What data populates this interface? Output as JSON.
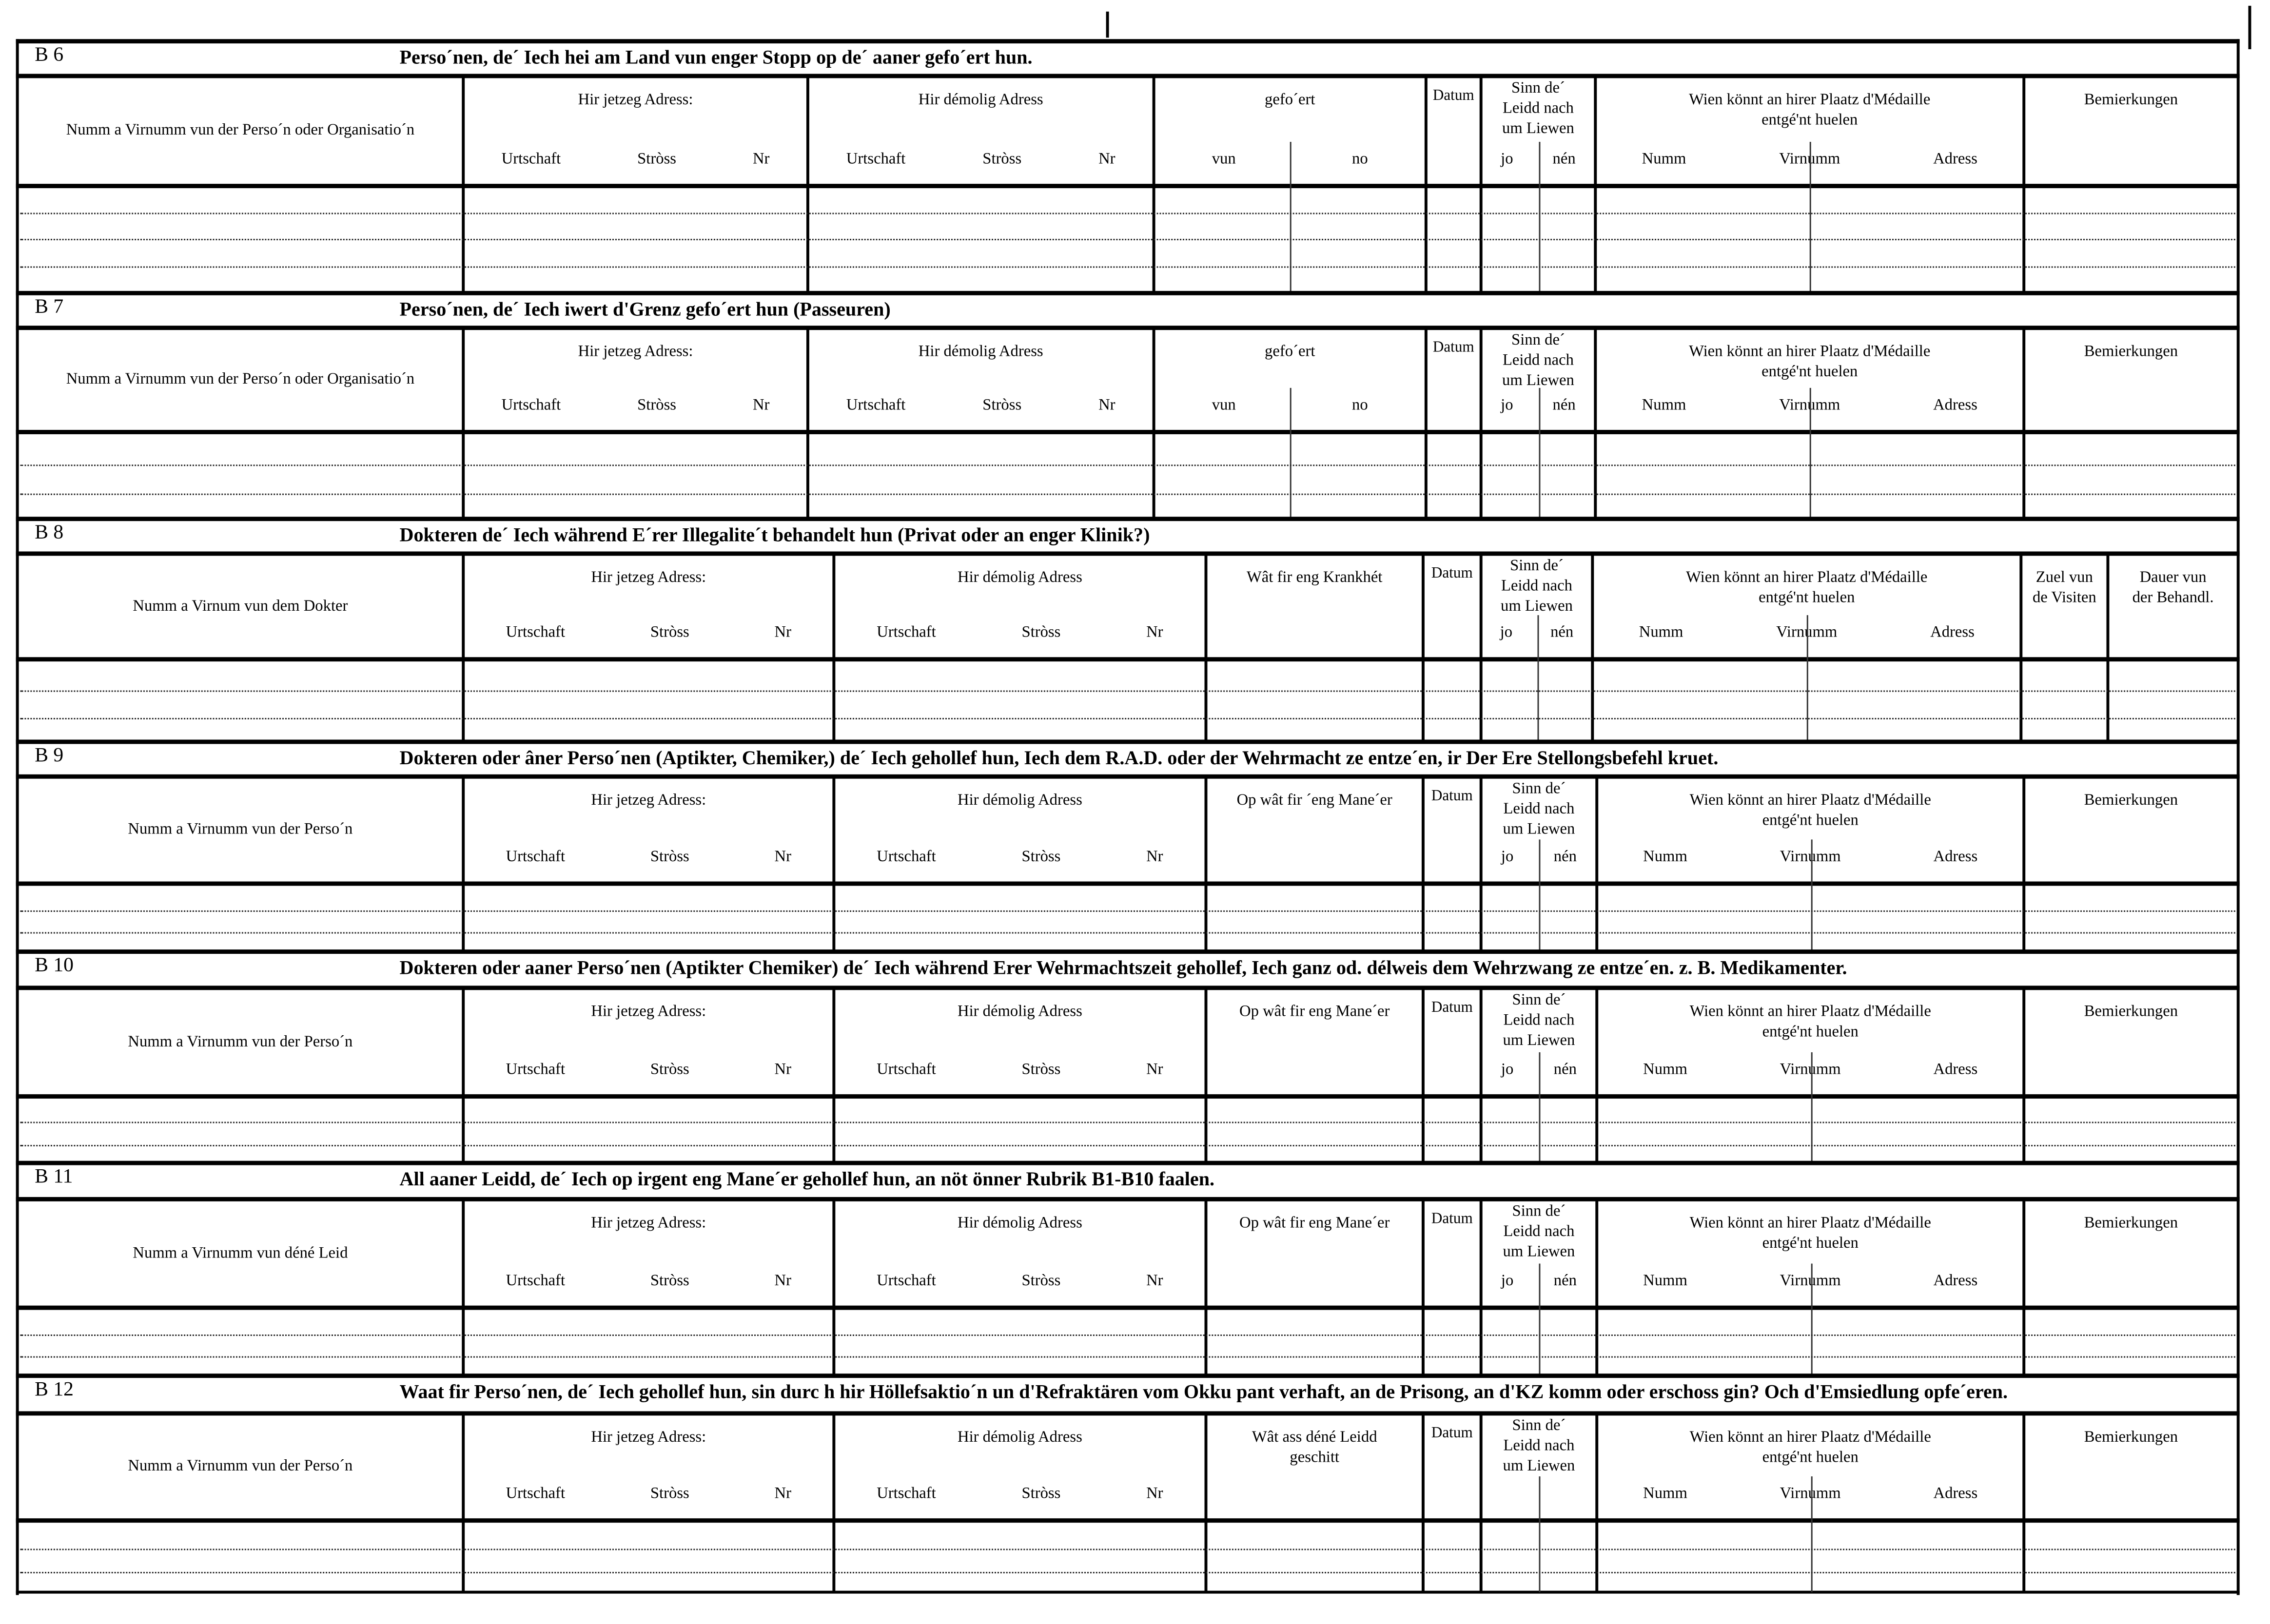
{
  "sections": [
    {
      "code": "B 6",
      "title": "Perso´nen, de´ Iech hei am Land vun enger Stopp  op de´ aaner gefo´ert hun.",
      "columns": [
        {
          "label": "Numm a Virnumm vun der Perso´n oder Organisatio´n"
        },
        {
          "label": "Hir jetzeg Adress:",
          "sub": [
            "Urtschaft",
            "Stròss",
            "Nr"
          ]
        },
        {
          "label": "Hir démolig Adress",
          "sub": [
            "Urtschaft",
            "Stròss",
            "Nr"
          ]
        },
        {
          "label": "gefo´ert",
          "sub": [
            "vun",
            "no"
          ]
        },
        {
          "label": "Datum"
        },
        {
          "label": "Sinn  de´\nLeidd  nach\num Liewen",
          "sub": [
            "jo",
            "nén"
          ]
        },
        {
          "label": "Wien  könnt  an  hirer  Plaatz  d'Médaille\nentgé'nt huelen",
          "sub": [
            "Numm",
            "Virnumm",
            "Adress"
          ]
        },
        {
          "label": "Bemierkungen"
        }
      ]
    },
    {
      "code": "B 7",
      "title": "Perso´nen, de´ Iech iwert d'Grenz gefo´ert hun (Passeuren)",
      "columns": [
        {
          "label": "Numm a Virnumm vun der Perso´n oder Organisatio´n"
        },
        {
          "label": "Hir jetzeg Adress:",
          "sub": [
            "Urtschaft",
            "Stròss",
            "Nr"
          ]
        },
        {
          "label": "Hir démolig Adress",
          "sub": [
            "Urtschaft",
            "Stròss",
            "Nr"
          ]
        },
        {
          "label": "gefo´ert",
          "sub": [
            "vun",
            "no"
          ]
        },
        {
          "label": "Datum"
        },
        {
          "label": "Sinn  de´\nLeidd  nach\num Liewen",
          "sub": [
            "jo",
            "nén"
          ]
        },
        {
          "label": "Wien  könnt  an  hirer  Plaatz  d'Médaille\nentgé'nt huelen",
          "sub": [
            "Numm",
            "Virnumm",
            "Adress"
          ]
        },
        {
          "label": "Bemierkungen"
        }
      ]
    },
    {
      "code": "B 8",
      "title": "Dokteren de´ Iech während E´rer Illegalite´t behandelt hun (Privat  oder an enger Klinik?)",
      "columns": [
        {
          "label": "Numm a Virnum vun dem Dokter"
        },
        {
          "label": "Hir jetzeg Adress:",
          "sub": [
            "Urtschaft",
            "Stròss",
            "Nr"
          ]
        },
        {
          "label": "Hir démolig Adress",
          "sub": [
            "Urtschaft",
            "Stròss",
            "Nr"
          ]
        },
        {
          "label": "Wât fir eng Krankhét"
        },
        {
          "label": "Datum"
        },
        {
          "label": "Sinn  de´\nLeidd  nach\num Liewen",
          "sub": [
            "jo",
            "nén"
          ]
        },
        {
          "label": "Wien  könnt  an  hirer  Plaatz  d'Médaille\nentgé'nt huelen",
          "sub": [
            "Numm",
            "Virnumm",
            "Adress"
          ]
        },
        {
          "label": "Zuel vun\nde Visiten"
        },
        {
          "label": "Dauer vun\nder Behandl."
        }
      ]
    },
    {
      "code": "B 9",
      "title": "Dokteren oder âner Perso´nen (Aptikter, Chemiker,) de´ Iech gehollef hun, Iech dem R.A.D. oder der  Wehrmacht  ze  entze´en,  ir Der Ere  Stellongsbefehl kruet.",
      "columns": [
        {
          "label": "Numm a Virnumm vun der Perso´n"
        },
        {
          "label": "Hir jetzeg Adress:",
          "sub": [
            "Urtschaft",
            "Stròss",
            "Nr"
          ]
        },
        {
          "label": "Hir démolig Adress",
          "sub": [
            "Urtschaft",
            "Stròss",
            "Nr"
          ]
        },
        {
          "label": "Op wât fir ´eng Mane´er"
        },
        {
          "label": "Datum"
        },
        {
          "label": "Sinn  de´\nLeidd  nach\num Liewen",
          "sub": [
            "jo",
            "nén"
          ]
        },
        {
          "label": "Wien  könnt  an  hirer  Plaatz  d'Médaille\nentgé'nt huelen",
          "sub": [
            "Numm",
            "Virnumm",
            "Adress"
          ]
        },
        {
          "label": "Bemierkungen"
        }
      ]
    },
    {
      "code": "B 10",
      "title": "Dokteren oder aaner Perso´nen (Aptikter Chemiker) de´ Iech während Erer Wehrmachtszeit gehollef, Iech ganz od. délweis dem Wehrzwang ze entze´en. z. B. Medikamenter.",
      "columns": [
        {
          "label": "Numm a Virnumm vun der Perso´n"
        },
        {
          "label": "Hir jetzeg Adress:",
          "sub": [
            "Urtschaft",
            "Stròss",
            "Nr"
          ]
        },
        {
          "label": "Hir démolig Adress",
          "sub": [
            "Urtschaft",
            "Stròss",
            "Nr"
          ]
        },
        {
          "label": "Op wât fir eng Mane´er"
        },
        {
          "label": "Datum"
        },
        {
          "label": "Sinn  de´\nLeidd  nach\num Liewen",
          "sub": [
            "jo",
            "nén"
          ]
        },
        {
          "label": "Wien  könnt  an  hirer  Plaatz  d'Médaille\nentgé'nt huelen",
          "sub": [
            "Numm",
            "Virnumm",
            "Adress"
          ]
        },
        {
          "label": "Bemierkungen"
        }
      ]
    },
    {
      "code": "B 11",
      "title": "All aaner Leidd, de´ Iech op irgent eng Mane´er  gehollef hun, an nöt önner Rubrik B1-B10 faalen.",
      "columns": [
        {
          "label": "Numm a Virnumm vun déné Leid"
        },
        {
          "label": "Hir jetzeg Adress:",
          "sub": [
            "Urtschaft",
            "Stròss",
            "Nr"
          ]
        },
        {
          "label": "Hir démolig Adress",
          "sub": [
            "Urtschaft",
            "Stròss",
            "Nr"
          ]
        },
        {
          "label": "Op wât fir eng Mane´er"
        },
        {
          "label": "Datum"
        },
        {
          "label": "Sinn  de´\nLeidd  nach\num Liewen",
          "sub": [
            "jo",
            "nén"
          ]
        },
        {
          "label": "Wien  könnt  an  hirer  Plaatz  d'Médaille\nentgé'nt huelen",
          "sub": [
            "Numm",
            "Virnumm",
            "Adress"
          ]
        },
        {
          "label": "Bemierkungen"
        }
      ]
    },
    {
      "code": "B 12",
      "title": "Waat fir Perso´nen, de´ Iech gehollef hun, sin durc h hir Höllefsaktio´n un d'Refraktären vom Okku pant verhaft, an de Prisong, an d'KZ komm oder  erschoss gin? Och d'Emsiedlung opfe´eren.",
      "columns": [
        {
          "label": "Numm a Virnumm vun der Perso´n"
        },
        {
          "label": "Hir jetzeg Adress:",
          "sub": [
            "Urtschaft",
            "Stròss",
            "Nr"
          ]
        },
        {
          "label": "Hir démolig Adress",
          "sub": [
            "Urtschaft",
            "Stròss",
            "Nr"
          ]
        },
        {
          "label": "Wât ass déné Leidd\ngeschitt"
        },
        {
          "label": "Datum"
        },
        {
          "label": "Sinn  de´\nLeidd  nach\num Liewen"
        },
        {
          "label": "Wien  könnt  an  hirer  Plaatz  d'Médaille\nentgé'nt huelen",
          "sub": [
            "Numm",
            "Virnumm",
            "Adress"
          ]
        },
        {
          "label": "Bemierkungen"
        }
      ]
    }
  ]
}
